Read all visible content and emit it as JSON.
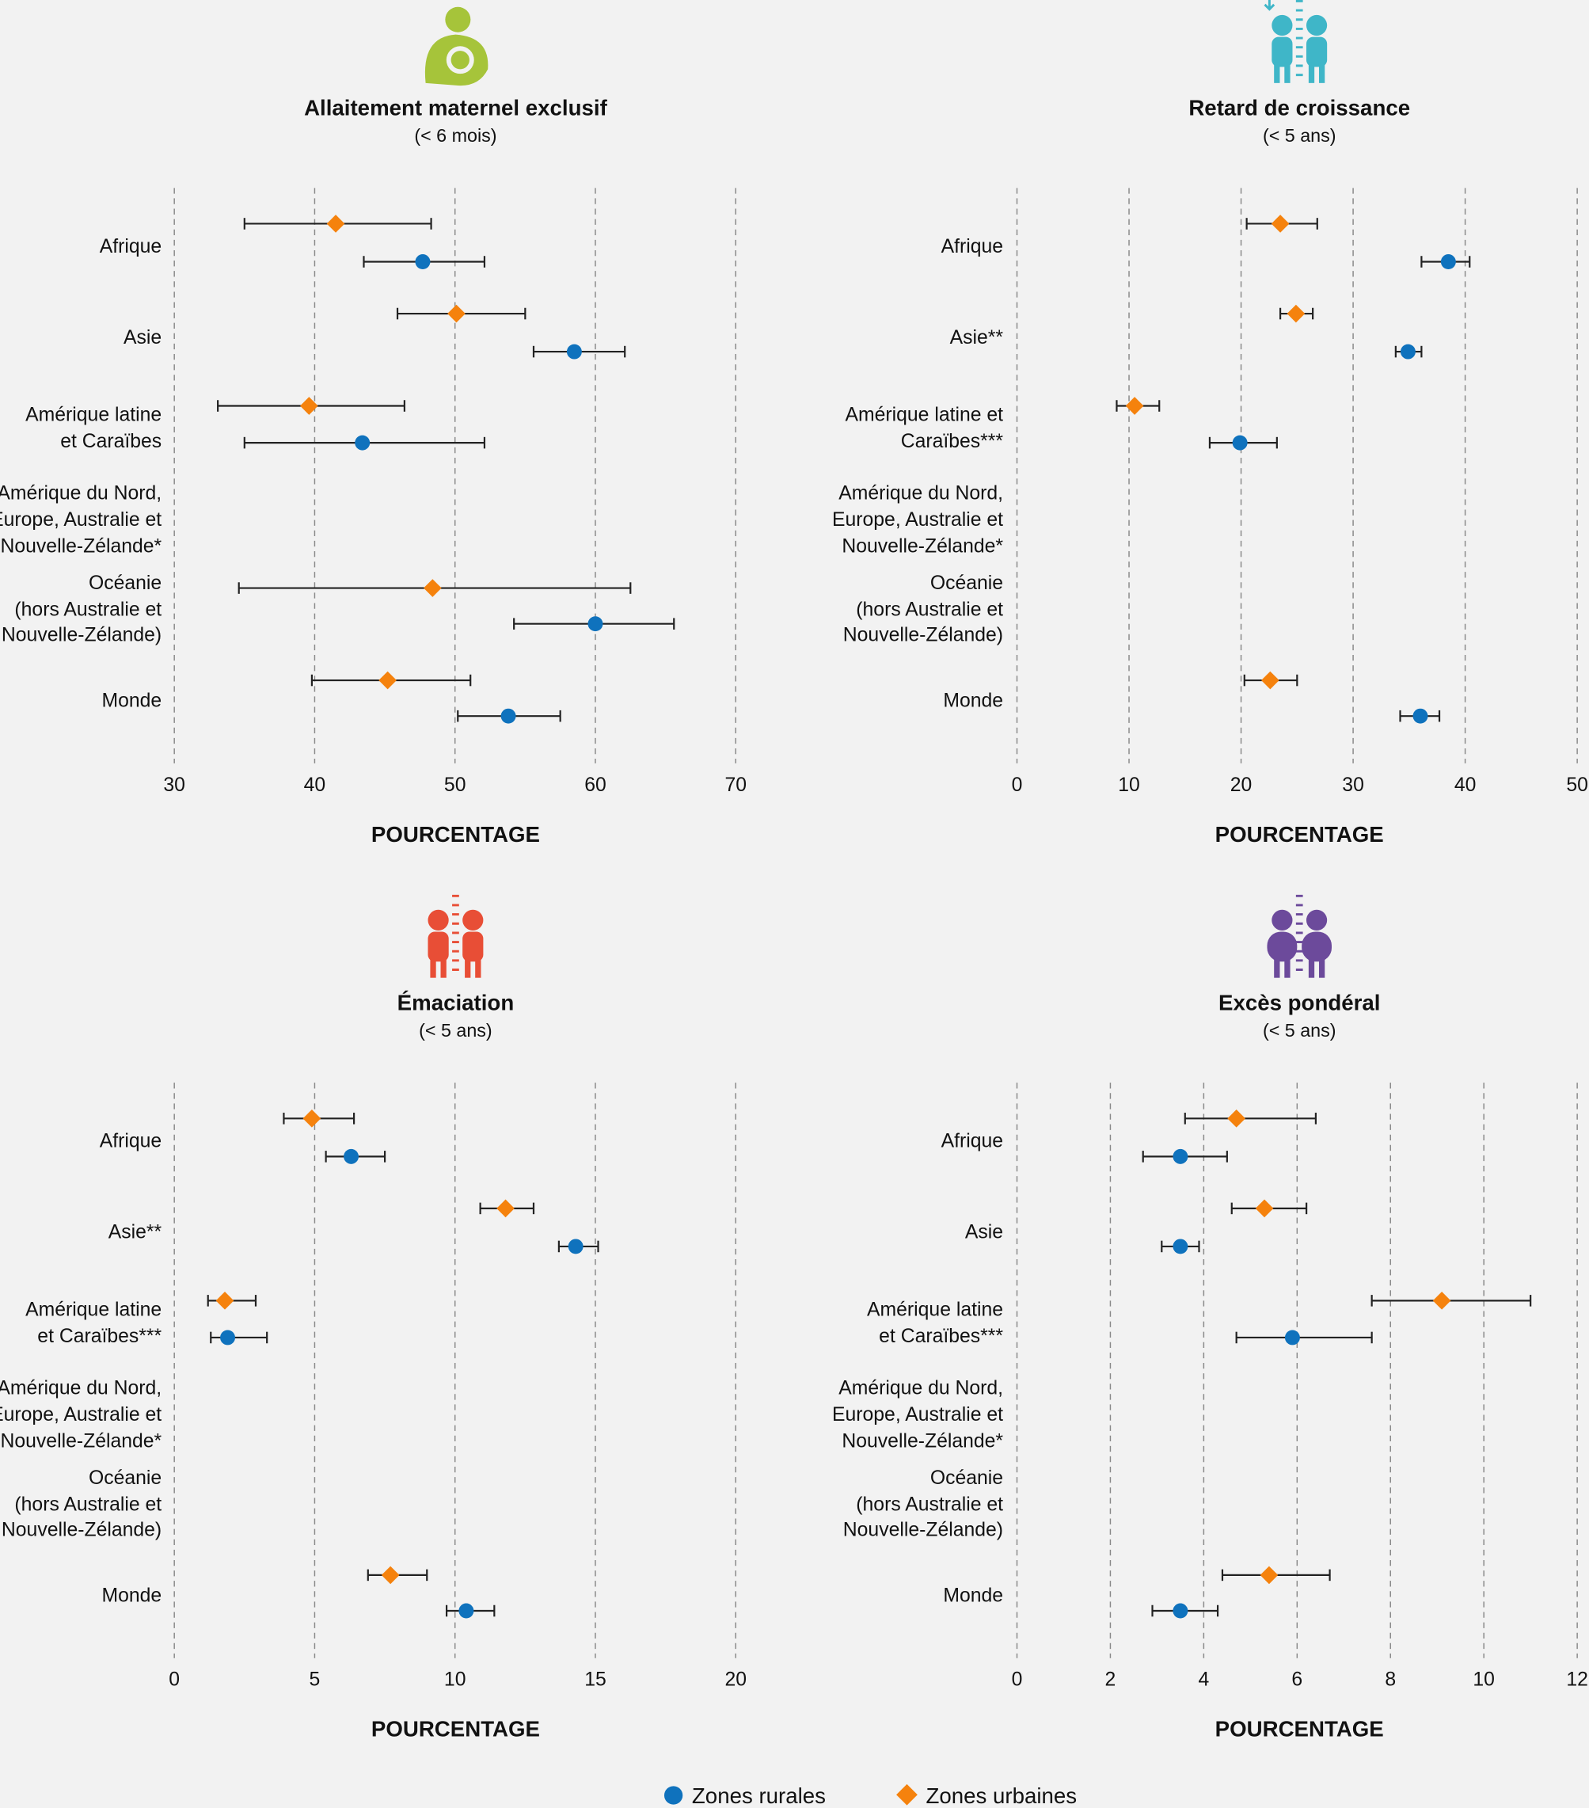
{
  "colors": {
    "rural": "#0f72bd",
    "urban": "#f5820d",
    "background": "#f2f2f2",
    "error_bar": "#222222",
    "grid": "#888888"
  },
  "legend": {
    "placement": "bottom-center",
    "items": [
      {
        "label": "Zones rurales",
        "marker": "circle",
        "color": "#0f72bd"
      },
      {
        "label": "Zones urbaines",
        "marker": "diamond",
        "color": "#f5820d"
      }
    ]
  },
  "chart_data": [
    {
      "type": "dot-errorbar",
      "icon": "breastfeeding-icon",
      "icon_color": "#a6c43a",
      "title": "Allaitement maternel exclusif",
      "subtitle": "(< 6 mois)",
      "xlabel": "POURCENTAGE",
      "xlim": [
        30,
        70
      ],
      "xticks": [
        30,
        40,
        50,
        60,
        70
      ],
      "grid": "vertical-dashed",
      "categories": [
        [
          "Afrique"
        ],
        [
          "Asie"
        ],
        [
          "Amérique latine",
          "et Caraïbes"
        ],
        [
          "Amérique du Nord,",
          "Europe, Australie et",
          "Nouvelle-Zélande*"
        ],
        [
          "Océanie",
          "(hors Australie et",
          "Nouvelle-Zélande)"
        ],
        [
          "Monde"
        ]
      ],
      "series": [
        {
          "name": "Zones urbaines",
          "values": [
            41.5,
            50.1,
            39.6,
            null,
            48.4,
            45.2
          ],
          "ci_low": [
            35.0,
            45.9,
            33.1,
            null,
            34.6,
            39.8
          ],
          "ci_high": [
            48.3,
            55.0,
            46.4,
            null,
            62.5,
            51.1
          ]
        },
        {
          "name": "Zones rurales",
          "values": [
            47.7,
            58.5,
            43.4,
            null,
            60.0,
            53.8
          ],
          "ci_low": [
            43.5,
            55.6,
            35.0,
            null,
            54.2,
            50.2
          ],
          "ci_high": [
            52.1,
            62.1,
            52.1,
            null,
            65.6,
            57.5
          ]
        }
      ]
    },
    {
      "type": "dot-errorbar",
      "icon": "stunting-children-icon",
      "icon_color": "#3fb6c8",
      "title": "Retard de croissance",
      "subtitle": "(< 5 ans)",
      "xlabel": "POURCENTAGE",
      "xlim": [
        0,
        50
      ],
      "xticks": [
        0,
        10,
        20,
        30,
        40,
        50
      ],
      "grid": "vertical-dashed",
      "categories": [
        [
          "Afrique"
        ],
        [
          "Asie**"
        ],
        [
          "Amérique latine et",
          "Caraïbes***"
        ],
        [
          "Amérique du Nord,",
          "Europe, Australie et",
          "Nouvelle-Zélande*"
        ],
        [
          "Océanie",
          "(hors Australie et",
          "Nouvelle-Zélande)"
        ],
        [
          "Monde"
        ]
      ],
      "series": [
        {
          "name": "Zones urbaines",
          "values": [
            23.5,
            24.9,
            10.5,
            null,
            null,
            22.6
          ],
          "ci_low": [
            20.5,
            23.5,
            8.9,
            null,
            null,
            20.3
          ],
          "ci_high": [
            26.8,
            26.4,
            12.7,
            null,
            null,
            25.0
          ]
        },
        {
          "name": "Zones rurales",
          "values": [
            38.5,
            34.9,
            19.9,
            null,
            null,
            36.0
          ],
          "ci_low": [
            36.1,
            33.8,
            17.2,
            null,
            null,
            34.2
          ],
          "ci_high": [
            40.4,
            36.1,
            23.2,
            null,
            null,
            37.7
          ]
        }
      ]
    },
    {
      "type": "dot-errorbar",
      "icon": "wasting-children-icon",
      "icon_color": "#e84e36",
      "title": "Émaciation",
      "subtitle": "(< 5 ans)",
      "xlabel": "POURCENTAGE",
      "xlim": [
        0,
        20
      ],
      "xticks": [
        0,
        5,
        10,
        15,
        20
      ],
      "grid": "vertical-dashed",
      "categories": [
        [
          "Afrique"
        ],
        [
          "Asie**"
        ],
        [
          "Amérique latine",
          "et Caraïbes***"
        ],
        [
          "Amérique du Nord,",
          "Europe, Australie et",
          "Nouvelle-Zélande*"
        ],
        [
          "Océanie",
          "(hors Australie et",
          "Nouvelle-Zélande)"
        ],
        [
          "Monde"
        ]
      ],
      "series": [
        {
          "name": "Zones urbaines",
          "values": [
            4.9,
            11.8,
            1.8,
            null,
            null,
            7.7
          ],
          "ci_low": [
            3.9,
            10.9,
            1.2,
            null,
            null,
            6.9
          ],
          "ci_high": [
            6.4,
            12.8,
            2.9,
            null,
            null,
            9.0
          ]
        },
        {
          "name": "Zones rurales",
          "values": [
            6.3,
            14.3,
            1.9,
            null,
            null,
            10.4
          ],
          "ci_low": [
            5.4,
            13.7,
            1.3,
            null,
            null,
            9.7
          ],
          "ci_high": [
            7.5,
            15.1,
            3.3,
            null,
            null,
            11.4
          ]
        }
      ]
    },
    {
      "type": "dot-errorbar",
      "icon": "overweight-children-icon",
      "icon_color": "#6c4a9b",
      "title": "Excès pondéral",
      "subtitle": "(< 5 ans)",
      "xlabel": "POURCENTAGE",
      "xlim": [
        0,
        12
      ],
      "xticks": [
        0,
        2,
        4,
        6,
        8,
        10,
        12
      ],
      "grid": "vertical-dashed",
      "categories": [
        [
          "Afrique"
        ],
        [
          "Asie"
        ],
        [
          "Amérique latine",
          "et Caraïbes***"
        ],
        [
          "Amérique du Nord,",
          "Europe, Australie et",
          "Nouvelle-Zélande*"
        ],
        [
          "Océanie",
          "(hors Australie et",
          "Nouvelle-Zélande)"
        ],
        [
          "Monde"
        ]
      ],
      "series": [
        {
          "name": "Zones urbaines",
          "values": [
            4.7,
            5.3,
            9.1,
            null,
            null,
            5.4
          ],
          "ci_low": [
            3.6,
            4.6,
            7.6,
            null,
            null,
            4.4
          ],
          "ci_high": [
            6.4,
            6.2,
            11.0,
            null,
            null,
            6.7
          ]
        },
        {
          "name": "Zones rurales",
          "values": [
            3.5,
            3.5,
            5.9,
            null,
            null,
            3.5
          ],
          "ci_low": [
            2.7,
            3.1,
            4.7,
            null,
            null,
            2.9
          ],
          "ci_high": [
            4.5,
            3.9,
            7.6,
            null,
            null,
            4.3
          ]
        }
      ]
    }
  ]
}
